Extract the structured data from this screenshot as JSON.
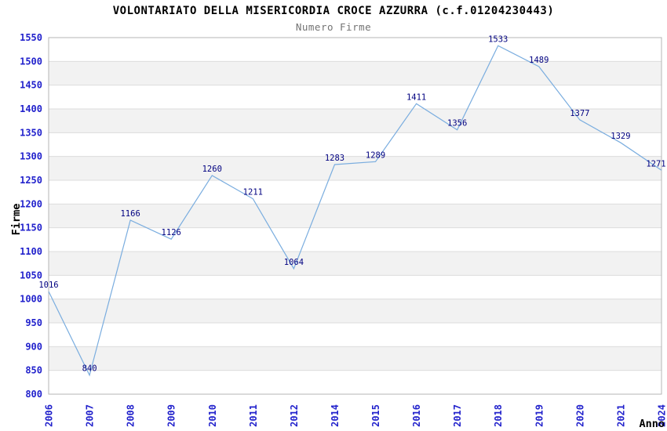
{
  "chart_data": {
    "type": "line",
    "title": "VOLONTARIATO DELLA MISERICORDIA CROCE AZZURRA (c.f.01204230443)",
    "subtitle": "Numero Firme",
    "xlabel": "Anno",
    "ylabel": "Firme",
    "x": [
      "2006",
      "2007",
      "2008",
      "2009",
      "2010",
      "2011",
      "2012",
      "2014",
      "2015",
      "2016",
      "2017",
      "2018",
      "2019",
      "2020",
      "2021",
      "2024"
    ],
    "values": [
      1016,
      840,
      1166,
      1126,
      1260,
      1211,
      1064,
      1283,
      1289,
      1411,
      1356,
      1533,
      1489,
      1377,
      1329,
      1271
    ],
    "ylim": [
      800,
      1550
    ],
    "ytick_step": 50,
    "grid": "horizontal gridlines with alternating background bands",
    "legend": "none",
    "point_labels_visible": true,
    "colors": {
      "line": "#7aaddf",
      "tick_label": "#2222cc",
      "data_label": "#000080",
      "band_even": "#ffffff",
      "band_odd": "#f2f2f2",
      "gridline": "#dcdcdc",
      "plot_border": "#b6b6b6",
      "title": "#000000",
      "subtitle": "#737373",
      "axis_label": "#000000",
      "background": "#ffffff"
    }
  }
}
